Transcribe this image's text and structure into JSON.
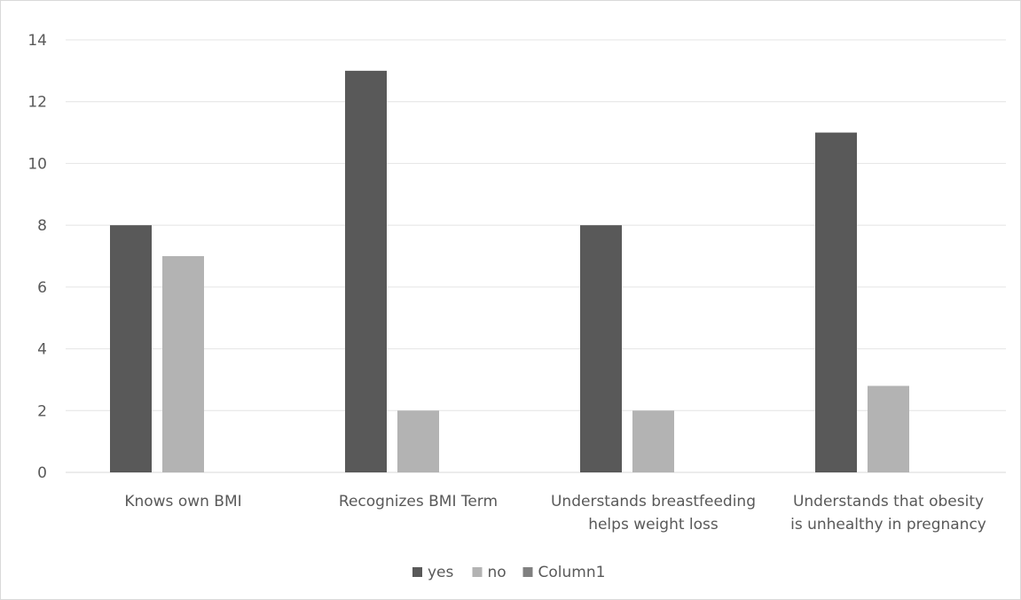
{
  "chart_data": {
    "type": "bar",
    "categories": [
      [
        "Knows own BMI"
      ],
      [
        "Recognizes BMI Term"
      ],
      [
        "Understands breastfeeding",
        "helps weight loss"
      ],
      [
        "Understands that obesity",
        "is unhealthy in pregnancy"
      ]
    ],
    "series": [
      {
        "name": "yes",
        "values": [
          8,
          13,
          8,
          11
        ],
        "color": "#595959"
      },
      {
        "name": "no",
        "values": [
          7,
          2,
          2,
          2.8
        ],
        "color": "#b3b3b3"
      },
      {
        "name": "Column1",
        "values": [
          null,
          null,
          null,
          null
        ],
        "color": "#808080"
      }
    ],
    "ylim": [
      0,
      14
    ],
    "yticks": [
      0,
      2,
      4,
      6,
      8,
      10,
      12,
      14
    ],
    "grid": true,
    "legend": "bottom",
    "title": "",
    "xlabel": "",
    "ylabel": ""
  }
}
